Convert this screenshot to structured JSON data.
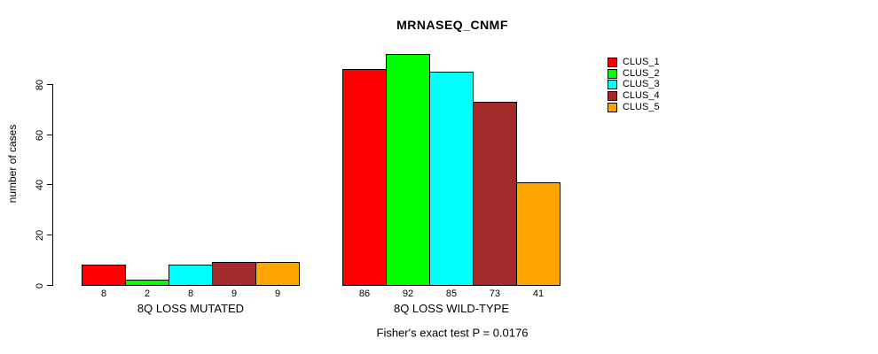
{
  "chart_data": {
    "type": "bar",
    "title": "MRNASEQ_CNMF",
    "ylabel": "number of cases",
    "xlabel": "",
    "yticks": [
      0,
      20,
      40,
      60,
      80
    ],
    "ylim": [
      0,
      92
    ],
    "grid": false,
    "legend_position": "right",
    "categories": [
      "8Q LOSS MUTATED",
      "8Q LOSS WILD-TYPE"
    ],
    "series": [
      {
        "name": "CLUS_1",
        "color": "#FF0000",
        "values": [
          8,
          86
        ]
      },
      {
        "name": "CLUS_2",
        "color": "#00FF00",
        "values": [
          2,
          92
        ]
      },
      {
        "name": "CLUS_3",
        "color": "#00FFFF",
        "values": [
          8,
          85
        ]
      },
      {
        "name": "CLUS_4",
        "color": "#A52A2A",
        "values": [
          9,
          73
        ]
      },
      {
        "name": "CLUS_5",
        "color": "#FFA500",
        "values": [
          9,
          41
        ]
      }
    ],
    "footer": "Fisher's exact test P = 0.0176"
  }
}
